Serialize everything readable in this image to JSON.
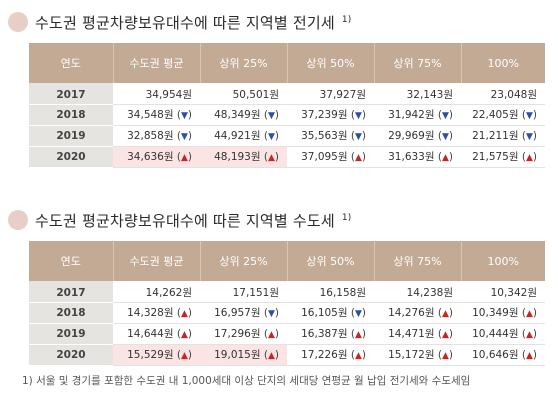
{
  "sections": [
    {
      "title": "수도권 평균차량보유대수에 따른 지역별 전기세",
      "footnote_mark": "1)",
      "headers": [
        "연도",
        "수도권 평균",
        "상위 25%",
        "상위 50%",
        "상위 75%",
        "100%"
      ],
      "rows": [
        {
          "year": "2017",
          "cells": [
            {
              "v": "34,954원",
              "t": ""
            },
            {
              "v": "50,501원",
              "t": ""
            },
            {
              "v": "37,927원",
              "t": ""
            },
            {
              "v": "32,143원",
              "t": ""
            },
            {
              "v": "23,048원",
              "t": ""
            }
          ]
        },
        {
          "year": "2018",
          "cells": [
            {
              "v": "34,548원",
              "t": "down"
            },
            {
              "v": "48,349원",
              "t": "down"
            },
            {
              "v": "37,239원",
              "t": "down"
            },
            {
              "v": "31,942원",
              "t": "down"
            },
            {
              "v": "22,405원",
              "t": "down"
            }
          ]
        },
        {
          "year": "2019",
          "cells": [
            {
              "v": "32,858원",
              "t": "down"
            },
            {
              "v": "44,921원",
              "t": "down"
            },
            {
              "v": "35,563원",
              "t": "down"
            },
            {
              "v": "29,969원",
              "t": "down"
            },
            {
              "v": "21,211원",
              "t": "down"
            }
          ]
        },
        {
          "year": "2020",
          "cells": [
            {
              "v": "34,636원",
              "t": "up"
            },
            {
              "v": "48,193원",
              "t": "up"
            },
            {
              "v": "37,095원",
              "t": "up"
            },
            {
              "v": "31,633원",
              "t": "up"
            },
            {
              "v": "21,575원",
              "t": "up"
            }
          ]
        }
      ]
    },
    {
      "title": "수도권 평균차량보유대수에 따른 지역별 수도세",
      "footnote_mark": "1)",
      "headers": [
        "연도",
        "수도권 평균",
        "상위 25%",
        "상위 50%",
        "상위 75%",
        "100%"
      ],
      "rows": [
        {
          "year": "2017",
          "cells": [
            {
              "v": "14,262원",
              "t": ""
            },
            {
              "v": "17,151원",
              "t": ""
            },
            {
              "v": "16,158원",
              "t": ""
            },
            {
              "v": "14,238원",
              "t": ""
            },
            {
              "v": "10,342원",
              "t": ""
            }
          ]
        },
        {
          "year": "2018",
          "cells": [
            {
              "v": "14,328원",
              "t": "up"
            },
            {
              "v": "16,957원",
              "t": "down"
            },
            {
              "v": "16,105원",
              "t": "down"
            },
            {
              "v": "14,276원",
              "t": "up"
            },
            {
              "v": "10,349원",
              "t": "up"
            }
          ]
        },
        {
          "year": "2019",
          "cells": [
            {
              "v": "14,644원",
              "t": "up"
            },
            {
              "v": "17,296원",
              "t": "up"
            },
            {
              "v": "16,387원",
              "t": "up"
            },
            {
              "v": "14,471원",
              "t": "up"
            },
            {
              "v": "10,444원",
              "t": "up"
            }
          ]
        },
        {
          "year": "2020",
          "cells": [
            {
              "v": "15,529원",
              "t": "up"
            },
            {
              "v": "19,015원",
              "t": "up"
            },
            {
              "v": "17,226원",
              "t": "up"
            },
            {
              "v": "15,172원",
              "t": "up"
            },
            {
              "v": "10,646원",
              "t": "up"
            }
          ]
        }
      ]
    }
  ],
  "trend_symbols": {
    "up": "▲",
    "down": "▼"
  },
  "footnote": "1) 서울 및 경기를 포함한 수도권 내 1,000세대 이상 단지의 세대당 연평균 월 납입 전기세와 수도세임",
  "colors": {
    "header": "#c2aa95",
    "year_cell": "#e6e4e1",
    "highlight": "#fbe4e4",
    "up": "#cc2222",
    "down": "#2a4fa8",
    "bullet": "#e7cfc8"
  }
}
